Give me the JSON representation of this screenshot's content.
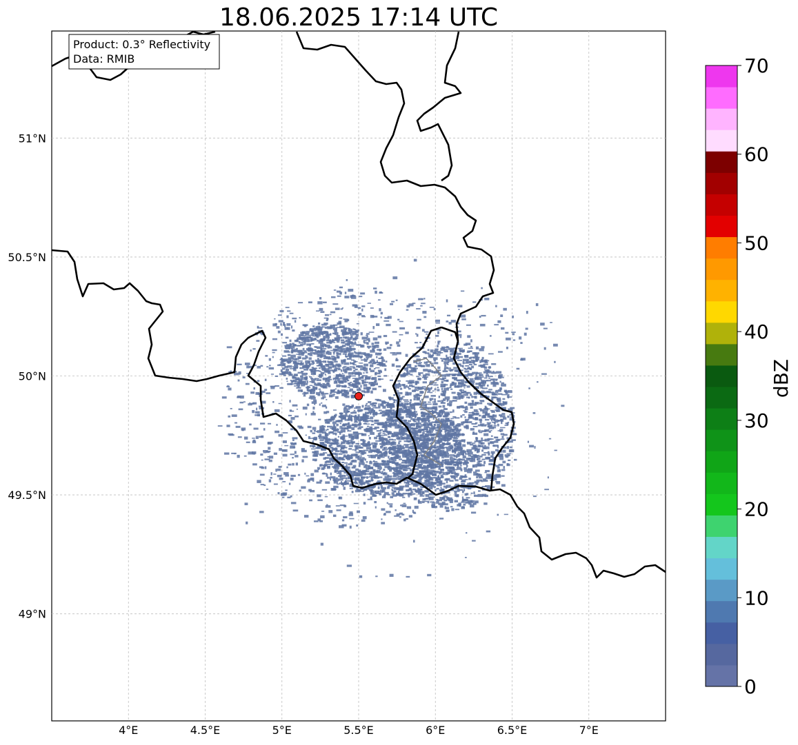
{
  "title": "18.06.2025 17:14 UTC",
  "info_box": {
    "line1": "Product: 0.3° Reflectivity",
    "line2": "Data: RMIB"
  },
  "map": {
    "lon_range": [
      3.5,
      7.5
    ],
    "lat_range": [
      48.55,
      51.45
    ],
    "lon_ticks": [
      {
        "v": 4.0,
        "label": "4°E"
      },
      {
        "v": 4.5,
        "label": "4.5°E"
      },
      {
        "v": 5.0,
        "label": "5°E"
      },
      {
        "v": 5.5,
        "label": "5.5°E"
      },
      {
        "v": 6.0,
        "label": "6°E"
      },
      {
        "v": 6.5,
        "label": "6.5°E"
      },
      {
        "v": 7.0,
        "label": "7°E"
      }
    ],
    "lat_ticks": [
      {
        "v": 49.0,
        "label": "49°N"
      },
      {
        "v": 49.5,
        "label": "49.5°N"
      },
      {
        "v": 50.0,
        "label": "50°N"
      },
      {
        "v": 50.5,
        "label": "50.5°N"
      },
      {
        "v": 51.0,
        "label": "51°N"
      }
    ],
    "grid": true,
    "radar_site": {
      "lon": 5.5,
      "lat": 49.915,
      "color": "#e8221c"
    },
    "echo_color": "#5f75a3"
  },
  "colorbar": {
    "label": "dBZ",
    "min": 0,
    "max": 70,
    "ticks": [
      "0",
      "10",
      "20",
      "30",
      "40",
      "50",
      "60",
      "70"
    ],
    "colors": [
      "#6573a7",
      "#56689f",
      "#4660a3",
      "#4f79b0",
      "#5a9ac6",
      "#64bfdb",
      "#63d5c8",
      "#3ed36f",
      "#14c61c",
      "#12b71a",
      "#10a517",
      "#0f9318",
      "#0d7f16",
      "#0b6a13",
      "#0a5a10",
      "#477a10",
      "#b0b20a",
      "#ffd800",
      "#ffb200",
      "#ff9900",
      "#ff7d00",
      "#e30000",
      "#c50000",
      "#a20000",
      "#7d0000",
      "#ffdcff",
      "#ffb4ff",
      "#ff6cff",
      "#ee37ee"
    ]
  }
}
